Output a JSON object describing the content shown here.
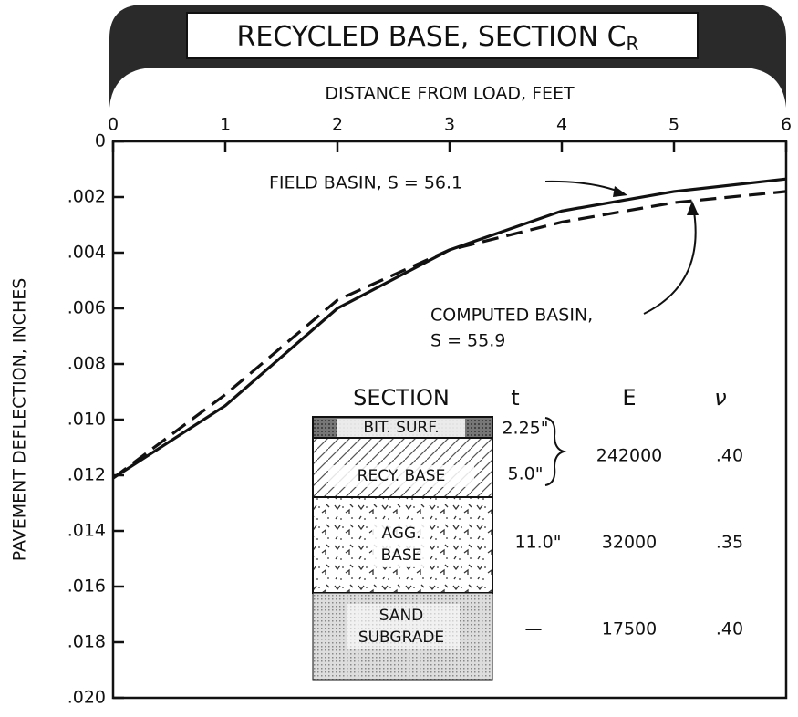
{
  "chart_data": {
    "type": "line",
    "title": "RECYCLED BASE, SECTION C",
    "title_subscript": "R",
    "x_label": "DISTANCE FROM LOAD, FEET",
    "y_label": "PAVEMENT DEFLECTION, INCHES",
    "x": [
      0,
      1,
      2,
      3,
      4,
      5,
      6
    ],
    "xlim": [
      0,
      6
    ],
    "xticks": [
      0,
      1,
      2,
      3,
      4,
      5,
      6
    ],
    "x_axis_position": "top",
    "ylim": [
      0,
      0.02
    ],
    "y_inverted": true,
    "yticks": [
      0,
      {
        "value": 0.002,
        "label": ".002"
      },
      {
        "value": 0.004,
        "label": ".004"
      },
      {
        "value": 0.006,
        "label": ".006"
      },
      {
        "value": 0.008,
        "label": ".008"
      },
      {
        "value": 0.01,
        "label": ".010"
      },
      {
        "value": 0.012,
        "label": ".012"
      },
      {
        "value": 0.014,
        "label": ".014"
      },
      {
        "value": 0.016,
        "label": ".016"
      },
      {
        "value": 0.018,
        "label": ".018"
      },
      {
        "value": 0.02,
        "label": ".020"
      }
    ],
    "series": [
      {
        "label_lines": [
          "FIELD BASIN, S = 56.1"
        ],
        "color": "#111111",
        "style": "solid",
        "values": [
          0.0121,
          0.0095,
          0.006,
          0.0039,
          0.0025,
          0.0018,
          0.00135
        ]
      },
      {
        "label_lines": [
          "COMPUTED BASIN,",
          "S = 55.9"
        ],
        "color": "#111111",
        "style": "dashed",
        "values": [
          0.0121,
          0.0091,
          0.0057,
          0.0039,
          0.0029,
          0.0022,
          0.0018
        ]
      }
    ],
    "section_table": {
      "headers": [
        "SECTION",
        "t",
        "E",
        "ν"
      ],
      "layers": [
        {
          "name": [
            "BIT. SURF."
          ],
          "t": "2.25\""
        },
        {
          "name": [
            "RECY. BASE"
          ],
          "t": "5.0\""
        },
        {
          "name": [
            "AGG.",
            "BASE"
          ],
          "t": "11.0\"",
          "E": "32000",
          "nu": ".35"
        },
        {
          "name": [
            "SAND",
            "SUBGRADE"
          ],
          "t": "—",
          "E": "17500",
          "nu": ".40"
        }
      ],
      "combined": {
        "E": "242000",
        "nu": ".40"
      }
    }
  }
}
